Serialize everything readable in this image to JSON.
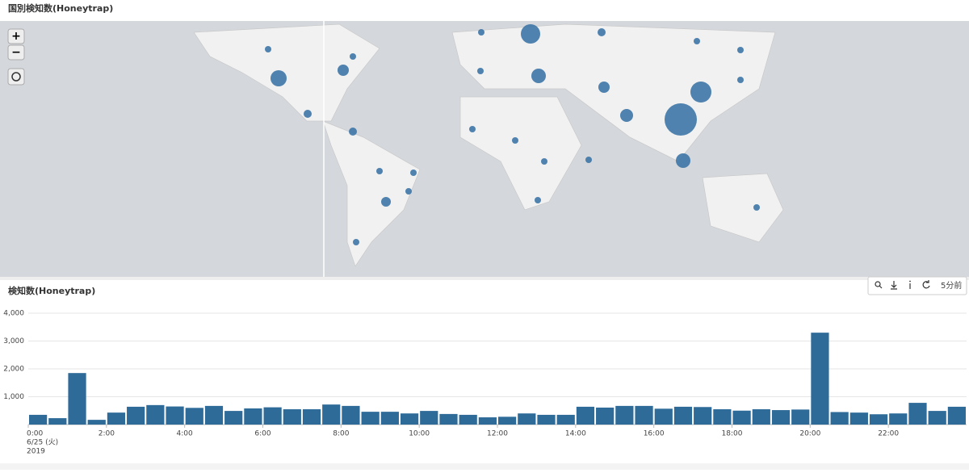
{
  "map_panel": {
    "title": "国別検知数(Honeytrap)"
  },
  "toolbar": {
    "time_ago": "5分前"
  },
  "chart_data": {
    "type": "bar",
    "title": "検知数(Honeytrap)",
    "categories": [
      "0:00",
      null,
      null,
      null,
      "2:00",
      null,
      null,
      null,
      "4:00",
      null,
      null,
      null,
      "6:00",
      null,
      null,
      null,
      "8:00",
      null,
      null,
      null,
      "10:00",
      null,
      null,
      null,
      "12:00",
      null,
      null,
      null,
      "14:00",
      null,
      null,
      null,
      "16:00",
      null,
      null,
      null,
      "18:00",
      null,
      null,
      null,
      "20:00",
      null,
      null,
      null,
      "22:00",
      null,
      null,
      null
    ],
    "x_start_date": "6/25 (火)",
    "x_start_year": "2019",
    "values": [
      350,
      230,
      1850,
      170,
      430,
      640,
      700,
      650,
      600,
      670,
      490,
      580,
      620,
      550,
      550,
      720,
      670,
      460,
      460,
      400,
      490,
      380,
      350,
      260,
      280,
      400,
      350,
      350,
      640,
      610,
      670,
      670,
      570,
      640,
      630,
      550,
      500,
      550,
      520,
      540,
      3300,
      450,
      430,
      370,
      400,
      780,
      490,
      640
    ],
    "color": "#2e6b99",
    "ylim": [
      0,
      4000
    ],
    "yticks": [
      {
        "value": 1000,
        "label": "1,000"
      },
      {
        "value": 2000,
        "label": "2,000"
      },
      {
        "value": 3000,
        "label": "3,000"
      },
      {
        "value": 4000,
        "label": "4,000"
      }
    ],
    "grid": true
  }
}
